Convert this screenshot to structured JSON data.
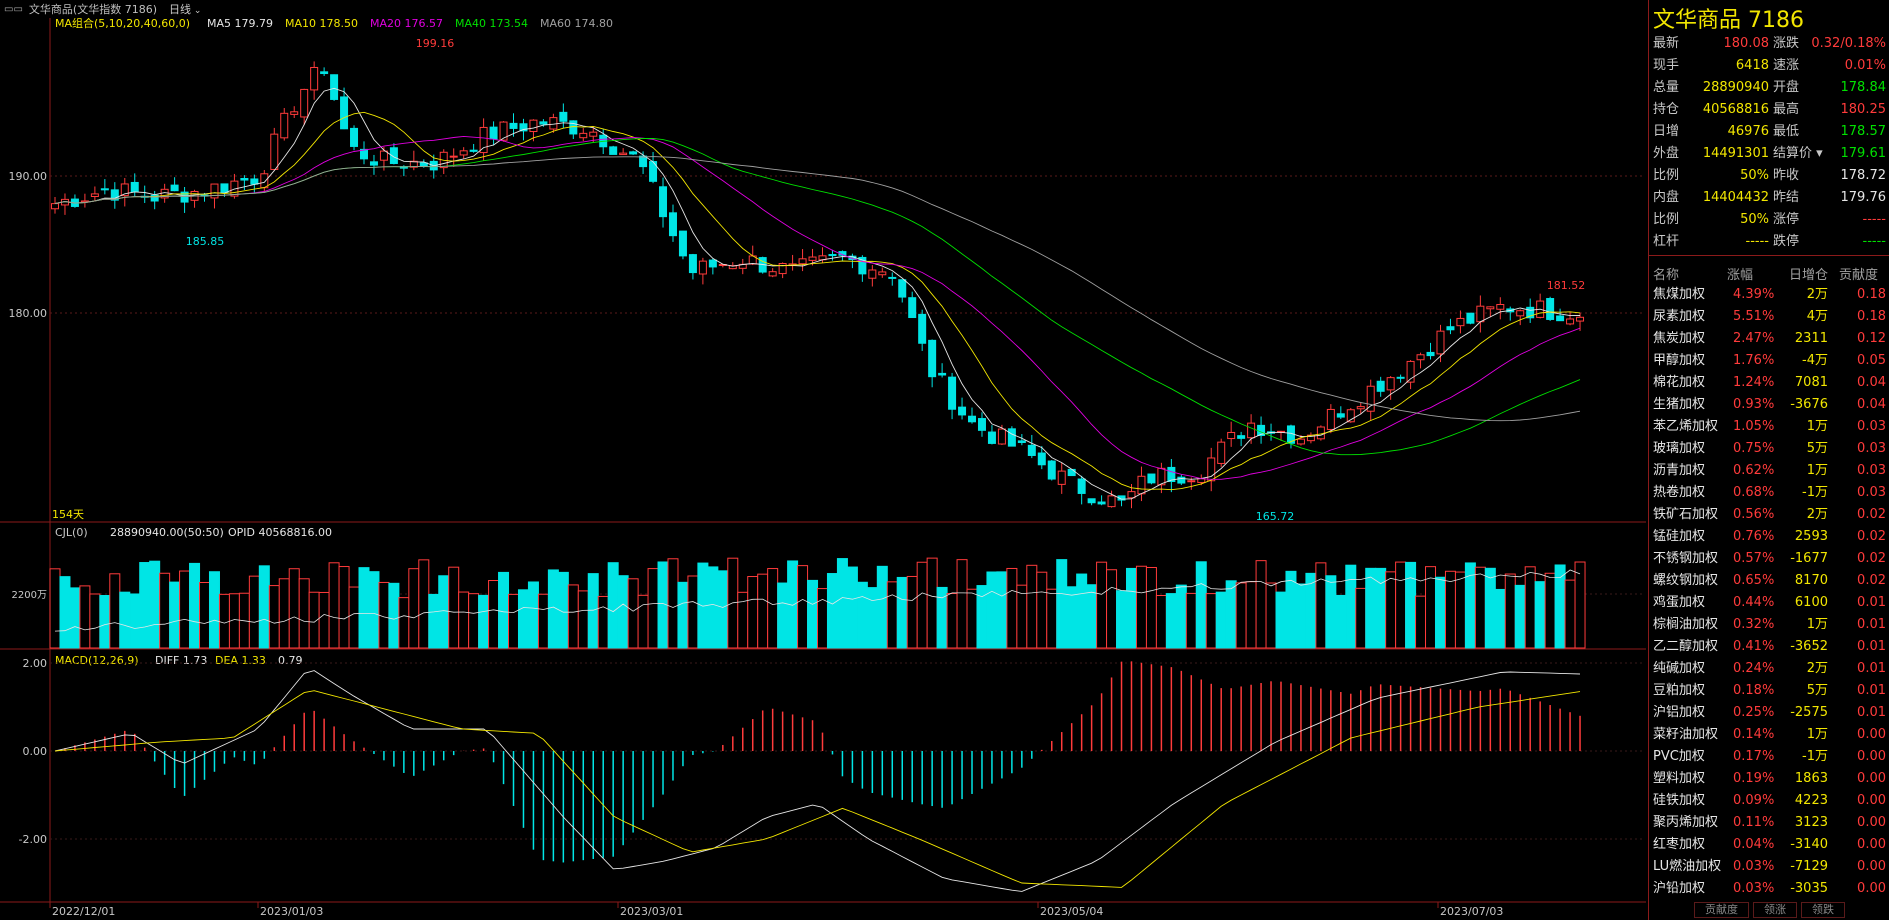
{
  "topbar": {
    "title": "文华商品(文华指数 7186)",
    "period": "日线"
  },
  "ma_legend": {
    "group": "MA组合(5,10,20,40,60,0)",
    "items": [
      {
        "label": "MA5 179.79",
        "color": "#e6e6e6"
      },
      {
        "label": "MA10 178.50",
        "color": "#f2e600"
      },
      {
        "label": "MA20 176.57",
        "color": "#e000e0"
      },
      {
        "label": "MA40 173.54",
        "color": "#00e000"
      },
      {
        "label": "MA60 174.80",
        "color": "#a0a0a0"
      }
    ]
  },
  "price_axis": [
    "190.00",
    "180.00"
  ],
  "annotations": {
    "high": "199.16",
    "low1": "185.85",
    "low2": "165.72",
    "recent_high": "181.52",
    "days": "154天"
  },
  "volume_legend": {
    "label": "CJL(0)",
    "value": "28890940.00(50:50)",
    "opid": "OPID 40568816.00",
    "axis": "2200万"
  },
  "macd_legend": {
    "label": "MACD(12,26,9)",
    "diff": "DIFF 1.73",
    "dea": "DEA 1.33",
    "macd": "0.79",
    "axis": [
      "2.00",
      "0.00",
      "-2.00"
    ]
  },
  "date_axis": [
    "2022/12/01",
    "2023/01/03",
    "2023/03/01",
    "2023/05/04",
    "2023/07/03"
  ],
  "quote": {
    "title": "文华商品  7186",
    "left": [
      {
        "label": "最新",
        "value": "180.08",
        "color": "red"
      },
      {
        "label": "现手",
        "value": "6418",
        "color": "yel"
      },
      {
        "label": "总量",
        "value": "28890940",
        "color": "yel"
      },
      {
        "label": "持仓",
        "value": "40568816",
        "color": "yel"
      },
      {
        "label": "日增",
        "value": "46976",
        "color": "yel"
      },
      {
        "label": "外盘",
        "value": "14491301",
        "color": "yel"
      },
      {
        "label": "比例",
        "value": "50%",
        "color": "yel"
      },
      {
        "label": "内盘",
        "value": "14404432",
        "color": "yel"
      },
      {
        "label": "比例",
        "value": "50%",
        "color": "yel"
      },
      {
        "label": "杠杆",
        "value": "-----",
        "color": "yel"
      }
    ],
    "right": [
      {
        "label": "涨跌",
        "value": "0.32/0.18%",
        "color": "red"
      },
      {
        "label": "速涨",
        "value": "0.01%",
        "color": "red"
      },
      {
        "label": "开盘",
        "value": "178.84",
        "color": "grn"
      },
      {
        "label": "最高",
        "value": "180.25",
        "color": "red"
      },
      {
        "label": "最低",
        "value": "178.57",
        "color": "grn"
      },
      {
        "label": "结算价",
        "value": "179.61",
        "color": "grn"
      },
      {
        "label": "昨收",
        "value": "178.72",
        "color": "wht"
      },
      {
        "label": "昨结",
        "value": "179.76",
        "color": "wht"
      },
      {
        "label": "涨停",
        "value": "-----",
        "color": "red"
      },
      {
        "label": "跌停",
        "value": "-----",
        "color": "grn"
      }
    ]
  },
  "list": {
    "headers": [
      "名称",
      "涨幅",
      "日增仓",
      "贡献度"
    ],
    "rows": [
      {
        "name": "焦煤加权",
        "chg": "4.39%",
        "inc": "2万",
        "contrib": "0.18"
      },
      {
        "name": "尿素加权",
        "chg": "5.51%",
        "inc": "4万",
        "contrib": "0.18"
      },
      {
        "name": "焦炭加权",
        "chg": "2.47%",
        "inc": "2311",
        "contrib": "0.12"
      },
      {
        "name": "甲醇加权",
        "chg": "1.76%",
        "inc": "-4万",
        "contrib": "0.05"
      },
      {
        "name": "棉花加权",
        "chg": "1.24%",
        "inc": "7081",
        "contrib": "0.04"
      },
      {
        "name": "生猪加权",
        "chg": "0.93%",
        "inc": "-3676",
        "contrib": "0.04"
      },
      {
        "name": "苯乙烯加权",
        "chg": "1.05%",
        "inc": "1万",
        "contrib": "0.03"
      },
      {
        "name": "玻璃加权",
        "chg": "0.75%",
        "inc": "5万",
        "contrib": "0.03"
      },
      {
        "name": "沥青加权",
        "chg": "0.62%",
        "inc": "1万",
        "contrib": "0.03"
      },
      {
        "name": "热卷加权",
        "chg": "0.68%",
        "inc": "-1万",
        "contrib": "0.03"
      },
      {
        "name": "铁矿石加权",
        "chg": "0.56%",
        "inc": "2万",
        "contrib": "0.02"
      },
      {
        "name": "锰硅加权",
        "chg": "0.76%",
        "inc": "2593",
        "contrib": "0.02"
      },
      {
        "name": "不锈钢加权",
        "chg": "0.57%",
        "inc": "-1677",
        "contrib": "0.02"
      },
      {
        "name": "螺纹钢加权",
        "chg": "0.65%",
        "inc": "8170",
        "contrib": "0.02"
      },
      {
        "name": "鸡蛋加权",
        "chg": "0.44%",
        "inc": "6100",
        "contrib": "0.01"
      },
      {
        "name": "棕榈油加权",
        "chg": "0.32%",
        "inc": "1万",
        "contrib": "0.01"
      },
      {
        "name": "乙二醇加权",
        "chg": "0.41%",
        "inc": "-3652",
        "contrib": "0.01"
      },
      {
        "name": "纯碱加权",
        "chg": "0.24%",
        "inc": "2万",
        "contrib": "0.01"
      },
      {
        "name": "豆粕加权",
        "chg": "0.18%",
        "inc": "5万",
        "contrib": "0.01"
      },
      {
        "name": "沪铝加权",
        "chg": "0.25%",
        "inc": "-2575",
        "contrib": "0.01"
      },
      {
        "name": "菜籽油加权",
        "chg": "0.14%",
        "inc": "1万",
        "contrib": "0.00"
      },
      {
        "name": "PVC加权",
        "chg": "0.17%",
        "inc": "-1万",
        "contrib": "0.00"
      },
      {
        "name": "塑料加权",
        "chg": "0.19%",
        "inc": "1863",
        "contrib": "0.00"
      },
      {
        "name": "硅铁加权",
        "chg": "0.09%",
        "inc": "4223",
        "contrib": "0.00"
      },
      {
        "name": "聚丙烯加权",
        "chg": "0.11%",
        "inc": "3123",
        "contrib": "0.00"
      },
      {
        "name": "红枣加权",
        "chg": "0.04%",
        "inc": "-3140",
        "contrib": "0.00"
      },
      {
        "name": "LU燃油加权",
        "chg": "0.03%",
        "inc": "-7129",
        "contrib": "0.00"
      },
      {
        "name": "沪铅加权",
        "chg": "0.03%",
        "inc": "-3035",
        "contrib": "0.00"
      }
    ]
  },
  "tabs": [
    "贡献度",
    "领涨",
    "领跌"
  ],
  "colors": {
    "up": "#ff3b3b",
    "down": "#00e5e5",
    "frame": "#8b1a1a",
    "yellow": "#f2e600"
  }
}
